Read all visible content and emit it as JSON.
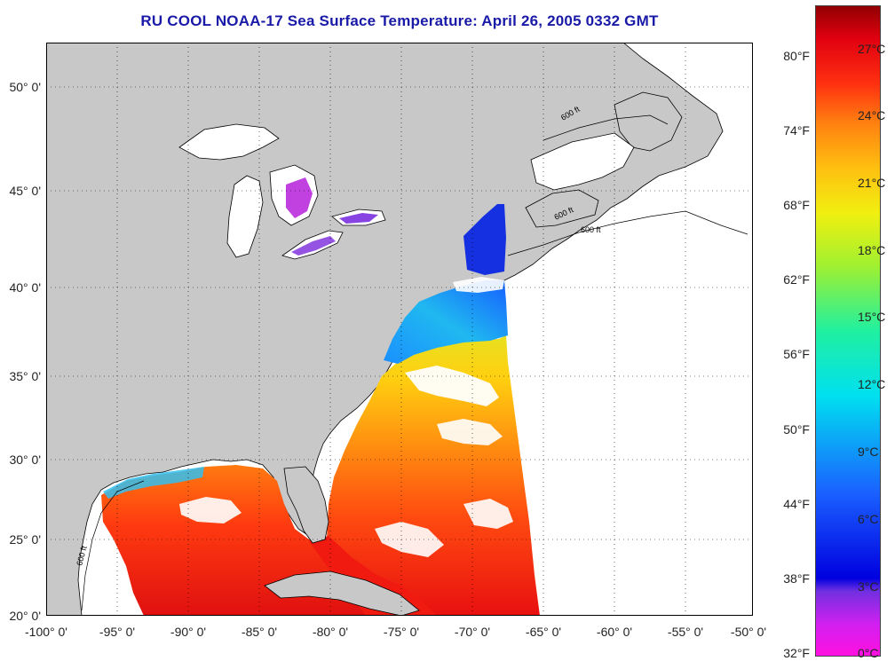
{
  "title": "RU COOL  NOAA-17  Sea Surface Temperature:  April 26, 2005 0332 GMT",
  "lat_labels": [
    "50° 0'",
    "45° 0'",
    "40° 0'",
    "35° 0'",
    "30° 0'",
    "25° 0'",
    "20° 0'"
  ],
  "lon_labels": [
    "-100° 0'",
    "-95° 0'",
    "-90° 0'",
    "-85° 0'",
    "-80° 0'",
    "-75° 0'",
    "-70° 0'",
    "-65° 0'",
    "-60° 0'",
    "-55° 0'",
    "-50° 0'"
  ],
  "contour_label": "600 ft",
  "colorbar": {
    "fahrenheit": [
      "80°F",
      "74°F",
      "68°F",
      "62°F",
      "56°F",
      "50°F",
      "44°F",
      "38°F",
      "32°F"
    ],
    "celsius": [
      "27°C",
      "24°C",
      "21°C",
      "18°C",
      "15°C",
      "12°C",
      "9°C",
      "6°C",
      "3°C",
      "0°C"
    ]
  },
  "colors": {
    "title": "#1a1aa8",
    "land": "#c8c8c8",
    "ocean_nodata": "#ffffff",
    "coast": "#000000"
  }
}
